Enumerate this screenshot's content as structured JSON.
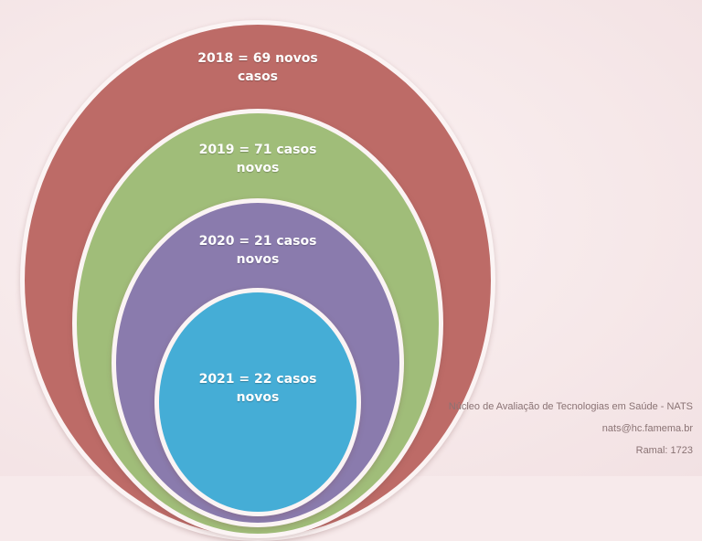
{
  "diagram": {
    "rings": [
      {
        "line1": "2018 = 69 novos",
        "line2": "casos",
        "color": "#bd6b67"
      },
      {
        "line1": "2019 = 71 casos",
        "line2": "novos",
        "color": "#a0bd79"
      },
      {
        "line1": "2020 = 21 casos",
        "line2": "novos",
        "color": "#8a7bad"
      },
      {
        "line1": "2021 = 22 casos",
        "line2": "novos",
        "color": "#45add6"
      }
    ]
  },
  "footer": {
    "org": "Núcleo de Avaliação de Tecnologias em Saúde - NATS",
    "email": "nats@hc.famema.br",
    "phone": "Ramal: 1723"
  }
}
